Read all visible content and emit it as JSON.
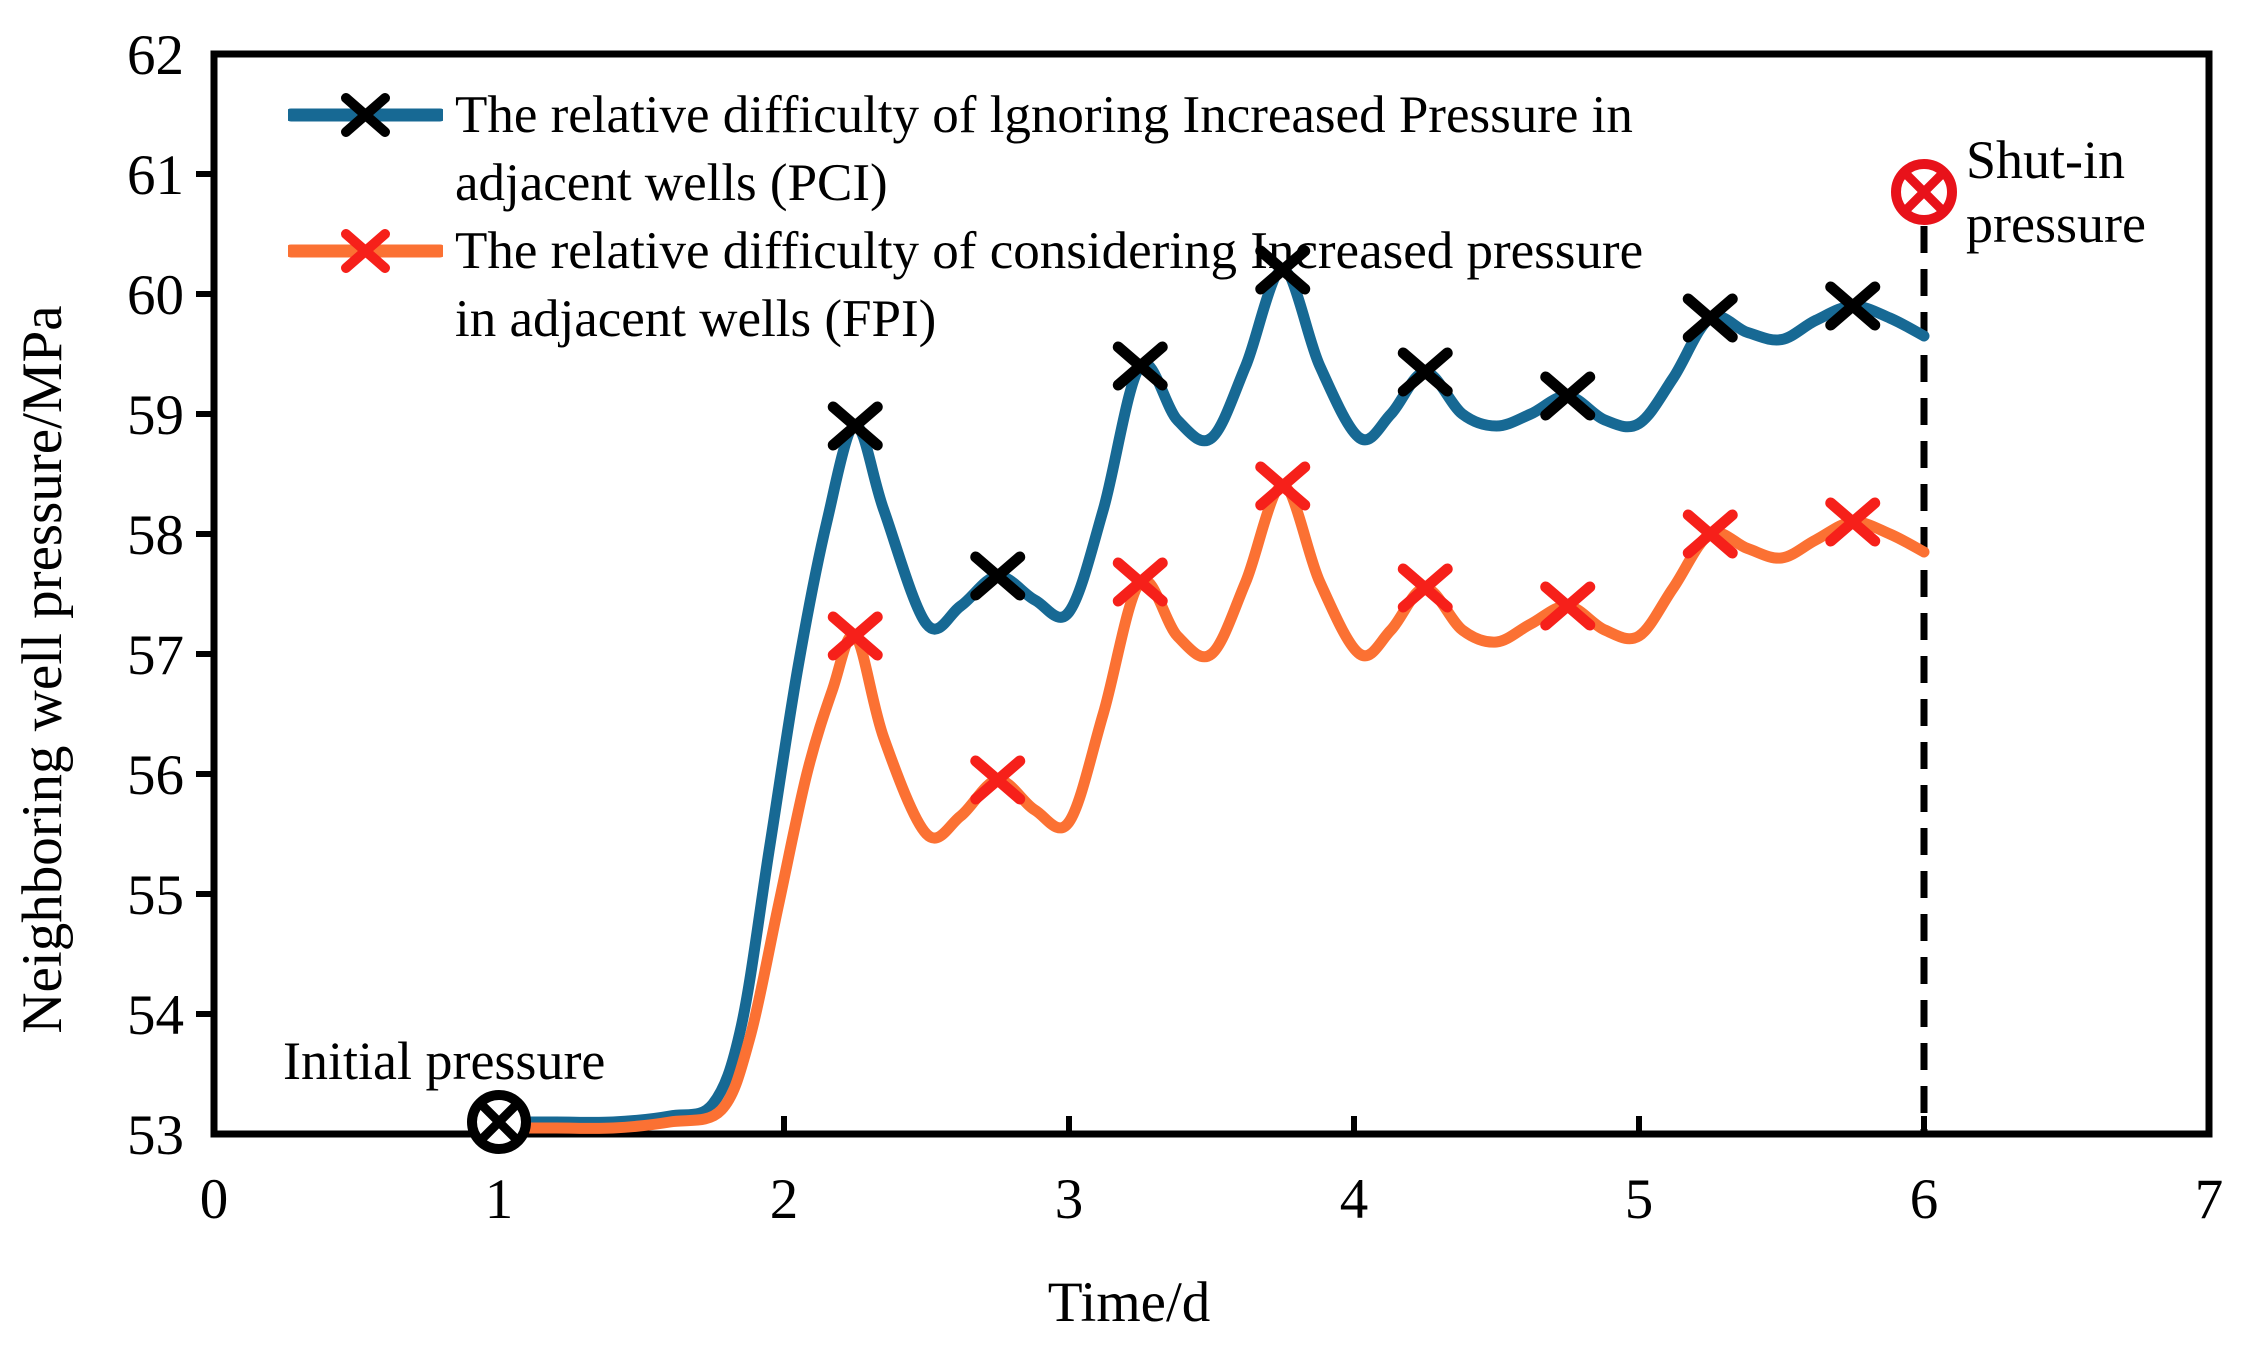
{
  "chart_data": {
    "type": "line",
    "title": "",
    "xlabel": "Time/d",
    "ylabel": "Neighboring well pressure/MPa",
    "xlim": [
      0,
      7
    ],
    "ylim": [
      53,
      62
    ],
    "x_ticks": [
      0,
      1,
      2,
      3,
      4,
      5,
      6,
      7
    ],
    "y_ticks": [
      53,
      54,
      55,
      56,
      57,
      58,
      59,
      60,
      61,
      62
    ],
    "grid": false,
    "legend_position": "top-left-inside",
    "axis_color": "#000000",
    "series": [
      {
        "name": "PCI",
        "label_lines": [
          "The relative difficulty of lgnoring Increased Pressure in",
          "adjacent wells (PCI)"
        ],
        "color": "#176994",
        "marker": "x",
        "marker_color": "#000000",
        "points": [
          [
            1.0,
            53.1
          ],
          [
            1.2,
            53.1
          ],
          [
            1.4,
            53.1
          ],
          [
            1.6,
            53.15
          ],
          [
            1.75,
            53.25
          ],
          [
            1.85,
            53.9
          ],
          [
            1.95,
            55.4
          ],
          [
            2.05,
            56.9
          ],
          [
            2.15,
            58.1
          ],
          [
            2.25,
            58.9
          ],
          [
            2.35,
            58.2
          ],
          [
            2.5,
            57.25
          ],
          [
            2.62,
            57.4
          ],
          [
            2.75,
            57.65
          ],
          [
            2.88,
            57.45
          ],
          [
            3.0,
            57.35
          ],
          [
            3.12,
            58.2
          ],
          [
            3.25,
            59.4
          ],
          [
            3.38,
            58.95
          ],
          [
            3.5,
            58.8
          ],
          [
            3.62,
            59.4
          ],
          [
            3.75,
            60.2
          ],
          [
            3.88,
            59.4
          ],
          [
            4.02,
            58.8
          ],
          [
            4.13,
            59.0
          ],
          [
            4.25,
            59.35
          ],
          [
            4.38,
            59.0
          ],
          [
            4.5,
            58.9
          ],
          [
            4.62,
            59.0
          ],
          [
            4.75,
            59.15
          ],
          [
            4.88,
            58.95
          ],
          [
            5.0,
            58.92
          ],
          [
            5.12,
            59.3
          ],
          [
            5.25,
            59.8
          ],
          [
            5.38,
            59.68
          ],
          [
            5.5,
            59.62
          ],
          [
            5.62,
            59.78
          ],
          [
            5.75,
            59.9
          ],
          [
            5.88,
            59.8
          ],
          [
            6.0,
            59.65
          ]
        ],
        "marker_points": [
          [
            2.25,
            58.9
          ],
          [
            2.75,
            57.65
          ],
          [
            3.25,
            59.4
          ],
          [
            3.75,
            60.2
          ],
          [
            4.25,
            59.35
          ],
          [
            4.75,
            59.15
          ],
          [
            5.25,
            59.8
          ],
          [
            5.75,
            59.9
          ]
        ]
      },
      {
        "name": "FPI",
        "label_lines": [
          "The relative difficulty of considering Increased pressure",
          "in adjacent wells (FPI)"
        ],
        "color": "#fb7133",
        "marker": "x",
        "marker_color": "#f6201a",
        "points": [
          [
            1.0,
            53.05
          ],
          [
            1.2,
            53.05
          ],
          [
            1.4,
            53.05
          ],
          [
            1.6,
            53.1
          ],
          [
            1.78,
            53.2
          ],
          [
            1.88,
            53.8
          ],
          [
            1.98,
            54.9
          ],
          [
            2.08,
            56.0
          ],
          [
            2.17,
            56.7
          ],
          [
            2.25,
            57.15
          ],
          [
            2.35,
            56.3
          ],
          [
            2.5,
            55.5
          ],
          [
            2.62,
            55.65
          ],
          [
            2.75,
            55.95
          ],
          [
            2.88,
            55.7
          ],
          [
            3.0,
            55.6
          ],
          [
            3.12,
            56.5
          ],
          [
            3.25,
            57.6
          ],
          [
            3.38,
            57.15
          ],
          [
            3.5,
            57.0
          ],
          [
            3.62,
            57.6
          ],
          [
            3.75,
            58.4
          ],
          [
            3.88,
            57.6
          ],
          [
            4.02,
            57.0
          ],
          [
            4.13,
            57.2
          ],
          [
            4.25,
            57.55
          ],
          [
            4.38,
            57.2
          ],
          [
            4.5,
            57.1
          ],
          [
            4.62,
            57.25
          ],
          [
            4.75,
            57.4
          ],
          [
            4.88,
            57.2
          ],
          [
            5.0,
            57.15
          ],
          [
            5.12,
            57.55
          ],
          [
            5.25,
            58.0
          ],
          [
            5.38,
            57.88
          ],
          [
            5.5,
            57.8
          ],
          [
            5.62,
            57.95
          ],
          [
            5.75,
            58.1
          ],
          [
            5.88,
            58.0
          ],
          [
            6.0,
            57.85
          ]
        ],
        "marker_points": [
          [
            2.25,
            57.15
          ],
          [
            2.75,
            55.95
          ],
          [
            3.25,
            57.6
          ],
          [
            3.75,
            58.4
          ],
          [
            4.25,
            57.55
          ],
          [
            4.75,
            57.4
          ],
          [
            5.25,
            58.0
          ],
          [
            5.75,
            58.1
          ]
        ]
      }
    ],
    "annotations": {
      "initial": {
        "label": "Initial pressure",
        "x": 1,
        "y": 53.1,
        "marker": "circle-x",
        "color": "#000000"
      },
      "shut_in": {
        "label_lines": [
          "Shut-in",
          "pressure"
        ],
        "x": 6,
        "y": 60.85,
        "marker": "circle-x",
        "color": "#e8121a",
        "dashed_line_to_axis": true
      }
    }
  }
}
